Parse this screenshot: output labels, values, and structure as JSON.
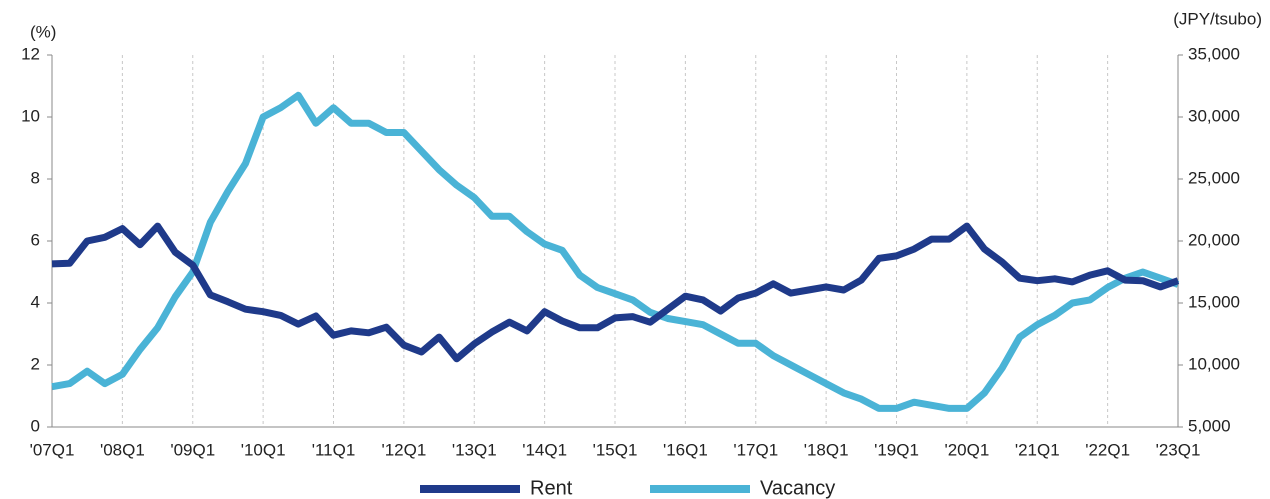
{
  "chart_data": {
    "type": "line",
    "y_label": "(%)",
    "y2_label": "(JPY/tsubo)",
    "categories": [
      "'07Q1",
      null,
      null,
      null,
      "'08Q1",
      null,
      null,
      null,
      "'09Q1",
      null,
      null,
      null,
      "'10Q1",
      null,
      null,
      null,
      "'11Q1",
      null,
      null,
      null,
      "'12Q1",
      null,
      null,
      null,
      "'13Q1",
      null,
      null,
      null,
      "'14Q1",
      null,
      null,
      null,
      "'15Q1",
      null,
      null,
      null,
      "'16Q1",
      null,
      null,
      null,
      "'17Q1",
      null,
      null,
      null,
      "'18Q1",
      null,
      null,
      null,
      "'19Q1",
      null,
      null,
      null,
      "'20Q1",
      null,
      null,
      null,
      "'21Q1",
      null,
      null,
      null,
      "'22Q1",
      null,
      null,
      null,
      "'23Q1"
    ],
    "series": [
      {
        "name": "Rent",
        "color": "#1f3a8a",
        "axis": "y2",
        "values": [
          18150,
          18200,
          20000,
          20300,
          21000,
          19700,
          21200,
          19100,
          18050,
          15650,
          15100,
          14500,
          14300,
          14000,
          13300,
          13950,
          12400,
          12750,
          12600,
          13050,
          11600,
          11050,
          12250,
          10500,
          11700,
          12650,
          13450,
          12750,
          14300,
          13550,
          13000,
          13000,
          13800,
          13900,
          13450,
          14500,
          15550,
          15250,
          14350,
          15400,
          15800,
          16550,
          15800,
          16050,
          16300,
          16050,
          16850,
          18600,
          18800,
          19350,
          20150,
          20150,
          21200,
          19350,
          18300,
          17000,
          16800,
          16950,
          16700,
          17250,
          17600,
          16850,
          16800,
          16300,
          16800
        ]
      },
      {
        "name": "Vacancy",
        "color": "#4ab3d6",
        "axis": "y",
        "values": [
          1.3,
          1.4,
          1.8,
          1.4,
          1.7,
          2.5,
          3.2,
          4.2,
          5.0,
          6.6,
          7.6,
          8.5,
          10.0,
          10.3,
          10.7,
          9.8,
          10.3,
          9.8,
          9.8,
          9.5,
          9.5,
          8.9,
          8.3,
          7.8,
          7.4,
          6.8,
          6.8,
          6.3,
          5.9,
          5.7,
          4.9,
          4.5,
          4.3,
          4.1,
          3.7,
          3.5,
          3.4,
          3.3,
          3.0,
          2.7,
          2.7,
          2.3,
          2.0,
          1.7,
          1.4,
          1.1,
          0.9,
          0.6,
          0.6,
          0.8,
          0.7,
          0.6,
          0.6,
          1.1,
          1.9,
          2.9,
          3.3,
          3.6,
          4.0,
          4.1,
          4.5,
          4.8,
          5.0,
          4.8,
          4.6
        ]
      }
    ],
    "ylim": [
      0,
      12
    ],
    "yticks": [
      0,
      2,
      4,
      6,
      8,
      10,
      12
    ],
    "y2lim": [
      5000,
      35000
    ],
    "y2ticks": [
      {
        "value": 5000,
        "label": "5,000"
      },
      {
        "value": 10000,
        "label": "10,000"
      },
      {
        "value": 15000,
        "label": "15,000"
      },
      {
        "value": 20000,
        "label": "20,000"
      },
      {
        "value": 25000,
        "label": "25,000"
      },
      {
        "value": 30000,
        "label": "30,000"
      },
      {
        "value": 35000,
        "label": "35,000"
      }
    ],
    "grid": true,
    "legend": "bottom"
  }
}
